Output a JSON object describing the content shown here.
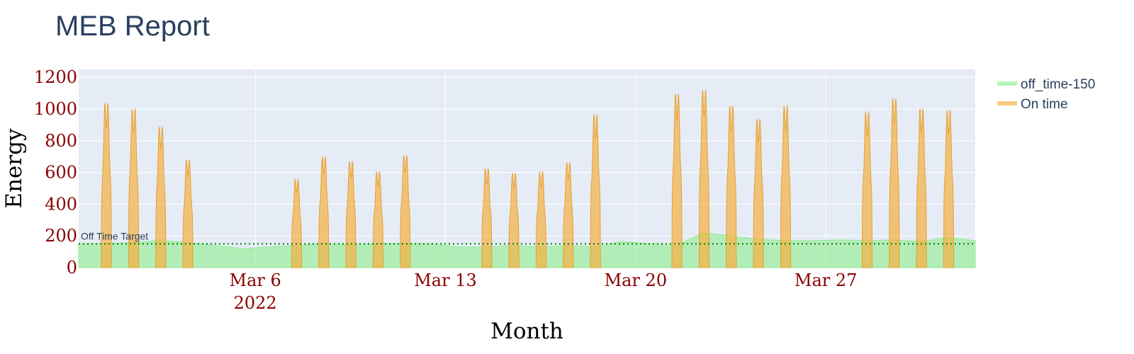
{
  "title": "MEB Report",
  "chart_data": {
    "type": "area",
    "xlabel": "Month",
    "ylabel": "Energy",
    "x_range": [
      "2022-02-27T12:00",
      "2022-04-01T12:00"
    ],
    "ylim": [
      0,
      1250
    ],
    "y_ticks": [
      0,
      200,
      400,
      600,
      800,
      1000,
      1200
    ],
    "x_ticks": [
      {
        "date": "2022-03-06",
        "label": "Mar 6",
        "sub": "2022"
      },
      {
        "date": "2022-03-13",
        "label": "Mar 13",
        "sub": ""
      },
      {
        "date": "2022-03-20",
        "label": "Mar 20",
        "sub": ""
      },
      {
        "date": "2022-03-27",
        "label": "Mar 27",
        "sub": ""
      }
    ],
    "grid": true,
    "legend_position": "right",
    "series": [
      {
        "name": "off_time-150",
        "color": "#90ee90",
        "baseline_level": 150,
        "points": [
          [
            "2022-02-27T12:00",
            150
          ],
          [
            "2022-02-28T12:00",
            150
          ],
          [
            "2022-03-01T12:00",
            160
          ],
          [
            "2022-03-02T12:00",
            170
          ],
          [
            "2022-03-03T12:00",
            160
          ],
          [
            "2022-03-04T12:00",
            140
          ],
          [
            "2022-03-05T12:00",
            120
          ],
          [
            "2022-03-06T12:00",
            130
          ],
          [
            "2022-03-07T12:00",
            140
          ],
          [
            "2022-03-08T12:00",
            150
          ],
          [
            "2022-03-09T12:00",
            145
          ],
          [
            "2022-03-10T12:00",
            150
          ],
          [
            "2022-03-11T12:00",
            150
          ],
          [
            "2022-03-12T12:00",
            150
          ],
          [
            "2022-03-13T12:00",
            130
          ],
          [
            "2022-03-14T12:00",
            130
          ],
          [
            "2022-03-15T12:00",
            140
          ],
          [
            "2022-03-16T12:00",
            130
          ],
          [
            "2022-03-17T12:00",
            140
          ],
          [
            "2022-03-18T12:00",
            130
          ],
          [
            "2022-03-19T12:00",
            165
          ],
          [
            "2022-03-20T12:00",
            150
          ],
          [
            "2022-03-21T12:00",
            140
          ],
          [
            "2022-03-22T12:00",
            220
          ],
          [
            "2022-03-23T12:00",
            200
          ],
          [
            "2022-03-24T12:00",
            180
          ],
          [
            "2022-03-25T12:00",
            170
          ],
          [
            "2022-03-26T12:00",
            170
          ],
          [
            "2022-03-27T12:00",
            175
          ],
          [
            "2022-03-28T12:00",
            170
          ],
          [
            "2022-03-29T12:00",
            175
          ],
          [
            "2022-03-30T12:00",
            165
          ],
          [
            "2022-03-31T12:00",
            190
          ],
          [
            "2022-04-01T12:00",
            170
          ]
        ]
      },
      {
        "name": "On time",
        "color": "#f5b041",
        "daily_peaks": [
          {
            "date": "2022-02-28",
            "peak": 1100
          },
          {
            "date": "2022-03-01",
            "peak": 1060
          },
          {
            "date": "2022-03-02",
            "peak": 940
          },
          {
            "date": "2022-03-03",
            "peak": 720
          },
          {
            "date": "2022-03-07",
            "peak": 590
          },
          {
            "date": "2022-03-08",
            "peak": 740
          },
          {
            "date": "2022-03-09",
            "peak": 710
          },
          {
            "date": "2022-03-10",
            "peak": 640
          },
          {
            "date": "2022-03-11",
            "peak": 750
          },
          {
            "date": "2022-03-14",
            "peak": 660
          },
          {
            "date": "2022-03-15",
            "peak": 630
          },
          {
            "date": "2022-03-16",
            "peak": 640
          },
          {
            "date": "2022-03-17",
            "peak": 700
          },
          {
            "date": "2022-03-18",
            "peak": 1020
          },
          {
            "date": "2022-03-21",
            "peak": 1160
          },
          {
            "date": "2022-03-22",
            "peak": 1190
          },
          {
            "date": "2022-03-23",
            "peak": 1080
          },
          {
            "date": "2022-03-24",
            "peak": 990
          },
          {
            "date": "2022-03-25",
            "peak": 1080
          },
          {
            "date": "2022-03-28",
            "peak": 1040
          },
          {
            "date": "2022-03-29",
            "peak": 1130
          },
          {
            "date": "2022-03-30",
            "peak": 1060
          },
          {
            "date": "2022-03-31",
            "peak": 1050
          }
        ]
      }
    ],
    "reference_line": {
      "y": 150,
      "label": "Off Time Target",
      "color": "#008000",
      "style": "dotted"
    }
  }
}
